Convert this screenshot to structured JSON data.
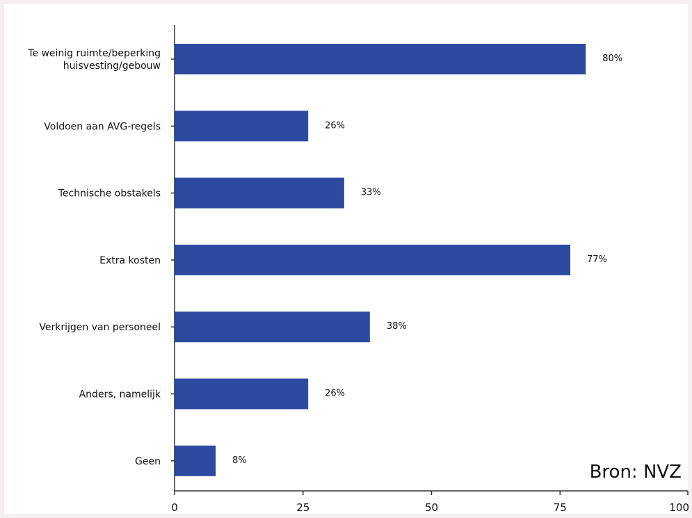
{
  "chart_data": {
    "type": "bar",
    "orientation": "horizontal",
    "categories": [
      [
        "Te weinig ruimte/beperking",
        "huisvesting/gebouw"
      ],
      [
        "Voldoen aan AVG-regels"
      ],
      [
        "Technische obstakels"
      ],
      [
        "Extra kosten"
      ],
      [
        "Verkrijgen van personeel"
      ],
      [
        "Anders, namelijk"
      ],
      [
        "Geen"
      ]
    ],
    "values": [
      80,
      26,
      33,
      77,
      38,
      26,
      8
    ],
    "value_labels": [
      "80%",
      "26%",
      "33%",
      "77%",
      "38%",
      "26%",
      "8%"
    ],
    "xlim": [
      0,
      100
    ],
    "xticks": [
      0,
      25,
      50,
      75,
      100
    ],
    "grid": false,
    "legend": "none",
    "annotation": "Bron: NVZ",
    "colors": {
      "bar": "#2d4aa1",
      "background": "#ffffff",
      "page_border": "#f6eff0",
      "axis": "#333333"
    }
  }
}
